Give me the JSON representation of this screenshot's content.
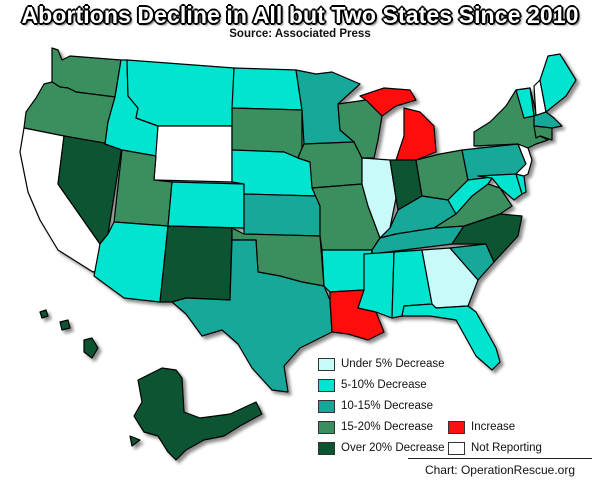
{
  "title": "Abortions Decline in All but Two States Since 2010",
  "subtitle": "Source: Associated Press",
  "credit": "Chart: OperationRescue.org",
  "colors": {
    "under_5": "#c8fafa",
    "five_to_10": "#00e4d0",
    "ten_to_15": "#14a898",
    "fifteen_to_20": "#3a8f5e",
    "over_20": "#0a5430",
    "increase": "#ff1010",
    "not_reporting": "#ffffff"
  },
  "legend": [
    {
      "key": "under_5",
      "label": "Under 5% Decrease"
    },
    {
      "key": "five_to_10",
      "label": "5-10% Decrease"
    },
    {
      "key": "ten_to_15",
      "label": "10-15% Decrease"
    },
    {
      "key": "fifteen_to_20",
      "label": "15-20% Decrease"
    },
    {
      "key": "over_20",
      "label": "Over 20% Decrease"
    },
    {
      "key": "increase",
      "label": "Increase"
    },
    {
      "key": "not_reporting",
      "label": "Not Reporting"
    }
  ],
  "states": {
    "WA": "fifteen_to_20",
    "OR": "fifteen_to_20",
    "CA": "not_reporting",
    "NV": "over_20",
    "ID": "five_to_10",
    "MT": "five_to_10",
    "WY": "not_reporting",
    "UT": "fifteen_to_20",
    "AZ": "five_to_10",
    "CO": "five_to_10",
    "NM": "over_20",
    "ND": "five_to_10",
    "SD": "fifteen_to_20",
    "NE": "five_to_10",
    "KS": "ten_to_15",
    "OK": "fifteen_to_20",
    "TX": "ten_to_15",
    "MN": "ten_to_15",
    "IA": "fifteen_to_20",
    "MO": "fifteen_to_20",
    "AR": "five_to_10",
    "LA": "increase",
    "WI": "fifteen_to_20",
    "IL": "under_5",
    "MI": "increase",
    "IN": "over_20",
    "OH": "fifteen_to_20",
    "KY": "ten_to_15",
    "TN": "ten_to_15",
    "MS": "five_to_10",
    "AL": "five_to_10",
    "GA": "under_5",
    "FL": "five_to_10",
    "SC": "ten_to_15",
    "NC": "over_20",
    "VA": "fifteen_to_20",
    "WV": "five_to_10",
    "PA": "ten_to_15",
    "NY": "fifteen_to_20",
    "VT": "five_to_10",
    "NH": "not_reporting",
    "ME": "five_to_10",
    "MA": "ten_to_15",
    "CT": "fifteen_to_20",
    "NJ": "not_reporting",
    "DE": "five_to_10",
    "MD": "five_to_10",
    "AK": "over_20",
    "HI": "over_20"
  }
}
